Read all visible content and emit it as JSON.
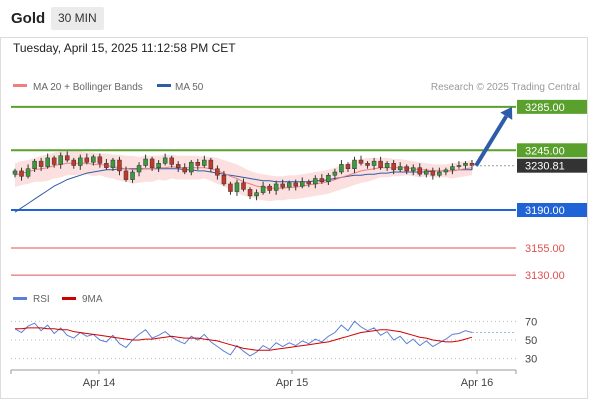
{
  "header": {
    "title": "Gold",
    "timeframe": "30 MIN"
  },
  "timestamp": "Tuesday, April 15, 2025 11:12:58 PM CET",
  "legend": [
    {
      "label": "MA 20 + Bollinger Bands",
      "color": "#f08080"
    },
    {
      "label": "MA 50",
      "color": "#2f5ca8"
    }
  ],
  "credit": "Research © 2025 Trading Central",
  "chart_data": {
    "type": "candlestick",
    "symbol": "Gold",
    "timeframe": "30 MIN",
    "last_price": "3230.81",
    "ylim": [
      3120,
      3295
    ],
    "x_labels": [
      "Apr 14",
      "Apr 15",
      "Apr 16"
    ],
    "levels": [
      {
        "label": "3285.00",
        "value": 3285,
        "kind": "resistance",
        "color": "#5aa02c"
      },
      {
        "label": "3245.00",
        "value": 3245,
        "kind": "resistance",
        "color": "#5aa02c"
      },
      {
        "label": "3190.00",
        "value": 3190,
        "kind": "support",
        "color": "#1f63d6"
      },
      {
        "label": "3155.00",
        "value": 3155,
        "kind": "support",
        "color": "#e05050"
      },
      {
        "label": "3130.00",
        "value": 3130,
        "kind": "support",
        "color": "#e05050"
      }
    ],
    "target_arrow": {
      "from": 3230.81,
      "to": 3285,
      "color": "#2f5ca8"
    },
    "closes": [
      3226,
      3221,
      3228,
      3235,
      3230,
      3238,
      3232,
      3240,
      3236,
      3231,
      3238,
      3234,
      3239,
      3233,
      3229,
      3236,
      3226,
      3218,
      3225,
      3231,
      3237,
      3229,
      3233,
      3238,
      3232,
      3229,
      3225,
      3234,
      3231,
      3236,
      3228,
      3222,
      3214,
      3207,
      3215,
      3209,
      3203,
      3206,
      3212,
      3208,
      3214,
      3211,
      3215,
      3212,
      3216,
      3214,
      3219,
      3216,
      3222,
      3225,
      3232,
      3228,
      3236,
      3233,
      3231,
      3235,
      3229,
      3233,
      3227,
      3230,
      3226,
      3229,
      3223,
      3226,
      3222,
      3225,
      3227,
      3230,
      3231,
      3233,
      3231
    ],
    "ma20": [
      3222,
      3224,
      3225,
      3227,
      3228,
      3229,
      3231,
      3232,
      3233,
      3233,
      3233,
      3233,
      3232,
      3232,
      3231,
      3230,
      3229,
      3228,
      3227,
      3227,
      3228,
      3228,
      3229,
      3229,
      3230,
      3229,
      3229,
      3229,
      3229,
      3229,
      3228,
      3226,
      3224,
      3221,
      3219,
      3216,
      3214,
      3212,
      3211,
      3210,
      3210,
      3210,
      3211,
      3211,
      3212,
      3213,
      3214,
      3215,
      3216,
      3218,
      3220,
      3222,
      3224,
      3226,
      3227,
      3228,
      3229,
      3229,
      3229,
      3229,
      3229,
      3228,
      3227,
      3227,
      3226,
      3226,
      3226,
      3226,
      3227,
      3228,
      3229
    ],
    "bb_upper": [
      3233,
      3235,
      3236,
      3238,
      3240,
      3241,
      3243,
      3244,
      3244,
      3244,
      3244,
      3243,
      3243,
      3242,
      3242,
      3241,
      3241,
      3240,
      3240,
      3239,
      3240,
      3240,
      3240,
      3241,
      3241,
      3240,
      3240,
      3240,
      3240,
      3239,
      3239,
      3238,
      3236,
      3234,
      3232,
      3229,
      3226,
      3224,
      3223,
      3222,
      3221,
      3221,
      3222,
      3222,
      3223,
      3224,
      3225,
      3226,
      3227,
      3229,
      3231,
      3233,
      3235,
      3237,
      3238,
      3238,
      3238,
      3238,
      3237,
      3237,
      3236,
      3235,
      3234,
      3233,
      3232,
      3232,
      3232,
      3233,
      3234,
      3235,
      3236
    ],
    "bb_lower": [
      3211,
      3213,
      3214,
      3216,
      3216,
      3217,
      3219,
      3220,
      3222,
      3222,
      3222,
      3223,
      3221,
      3222,
      3220,
      3219,
      3217,
      3216,
      3214,
      3215,
      3216,
      3216,
      3218,
      3217,
      3219,
      3218,
      3218,
      3218,
      3218,
      3219,
      3217,
      3214,
      3212,
      3208,
      3206,
      3203,
      3202,
      3200,
      3199,
      3198,
      3199,
      3199,
      3200,
      3200,
      3201,
      3202,
      3203,
      3204,
      3205,
      3207,
      3209,
      3211,
      3213,
      3215,
      3216,
      3218,
      3220,
      3220,
      3221,
      3221,
      3222,
      3221,
      3220,
      3221,
      3220,
      3220,
      3220,
      3219,
      3220,
      3221,
      3222
    ],
    "ma50": [
      3188,
      3192,
      3196,
      3200,
      3204,
      3208,
      3212,
      3215,
      3218,
      3220,
      3222,
      3224,
      3225,
      3226,
      3227,
      3227,
      3228,
      3228,
      3228,
      3228,
      3228,
      3228,
      3228,
      3228,
      3228,
      3228,
      3227,
      3227,
      3226,
      3226,
      3225,
      3224,
      3223,
      3222,
      3221,
      3220,
      3219,
      3218,
      3217,
      3217,
      3216,
      3216,
      3216,
      3216,
      3216,
      3216,
      3217,
      3217,
      3218,
      3219,
      3220,
      3221,
      3222,
      3222,
      3223,
      3223,
      3224,
      3224,
      3225,
      3225,
      3225,
      3225,
      3225,
      3225,
      3226,
      3226,
      3226,
      3226,
      3227,
      3227,
      3227
    ],
    "rsi": {
      "legend": [
        {
          "label": "RSI",
          "color": "#5b7fd6"
        },
        {
          "label": "9MA",
          "color": "#d00000"
        }
      ],
      "levels": [
        70,
        50,
        30
      ],
      "ylim": [
        20,
        80
      ],
      "values": [
        62,
        58,
        65,
        68,
        60,
        66,
        57,
        63,
        55,
        52,
        58,
        54,
        56,
        50,
        48,
        55,
        46,
        42,
        50,
        56,
        61,
        52,
        55,
        59,
        53,
        49,
        46,
        54,
        50,
        56,
        48,
        43,
        38,
        34,
        44,
        38,
        33,
        37,
        44,
        40,
        47,
        43,
        47,
        44,
        49,
        46,
        51,
        48,
        54,
        58,
        66,
        60,
        70,
        64,
        60,
        63,
        55,
        59,
        50,
        54,
        46,
        51,
        44,
        49,
        43,
        47,
        51,
        56,
        57,
        60,
        58
      ],
      "ma9": [
        62,
        62,
        63,
        63,
        63,
        62,
        62,
        61,
        61,
        59,
        58,
        57,
        56,
        55,
        54,
        53,
        52,
        51,
        50,
        50,
        51,
        51,
        52,
        53,
        54,
        53,
        52,
        52,
        52,
        51,
        50,
        49,
        47,
        45,
        43,
        41,
        40,
        39,
        39,
        39,
        40,
        41,
        42,
        43,
        44,
        45,
        46,
        47,
        48,
        50,
        52,
        54,
        56,
        58,
        59,
        60,
        61,
        61,
        60,
        59,
        57,
        55,
        53,
        52,
        50,
        49,
        48,
        48,
        49,
        51,
        53
      ]
    }
  }
}
